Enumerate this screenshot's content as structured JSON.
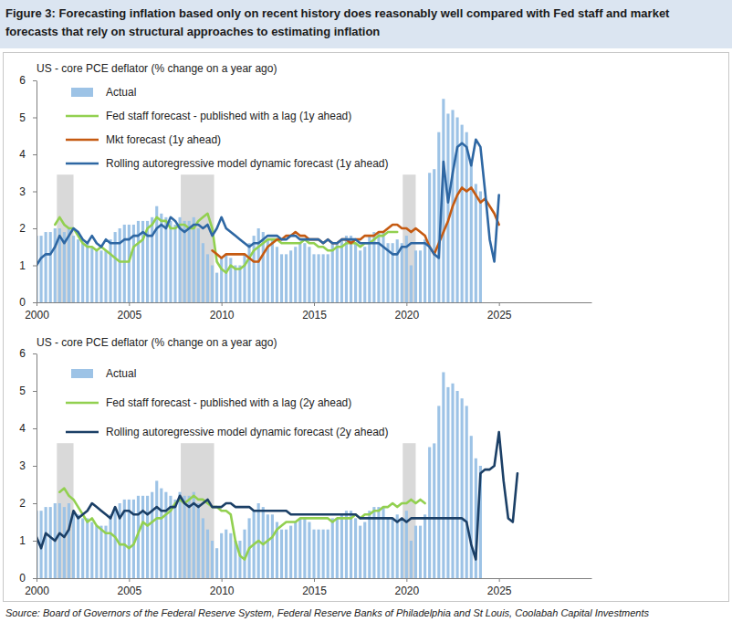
{
  "title": "Figure 3: Forecasting inflation based only on recent history does reasonably well compared with Fed staff and market forecasts that rely on structural approaches to estimating inflation",
  "source": "Source: Board of Governors of the Federal Reserve System, Federal Reserve Banks of Philadelphia and St Louis, Coolabah Capital Investments",
  "chart_data": [
    {
      "type": "line",
      "subtitle": "US - core PCE deflator (% change on a year ago)",
      "xlim": [
        2000,
        2030
      ],
      "xticks": [
        2000,
        2005,
        2010,
        2015,
        2020,
        2025
      ],
      "ylim": [
        0,
        6
      ],
      "yticks": [
        0,
        1,
        2,
        3,
        4,
        5,
        6
      ],
      "grid": false,
      "legend": "upper left",
      "recessions": [
        [
          2001.1,
          2002.0
        ],
        [
          2007.8,
          2009.6
        ],
        [
          2019.8,
          2020.5
        ]
      ],
      "x": [
        2000,
        2000.25,
        2000.5,
        2000.75,
        2001,
        2001.25,
        2001.5,
        2001.75,
        2002,
        2002.25,
        2002.5,
        2002.75,
        2003,
        2003.25,
        2003.5,
        2003.75,
        2004,
        2004.25,
        2004.5,
        2004.75,
        2005,
        2005.25,
        2005.5,
        2005.75,
        2006,
        2006.25,
        2006.5,
        2006.75,
        2007,
        2007.25,
        2007.5,
        2007.75,
        2008,
        2008.25,
        2008.5,
        2008.75,
        2009,
        2009.25,
        2009.5,
        2009.75,
        2010,
        2010.25,
        2010.5,
        2010.75,
        2011,
        2011.25,
        2011.5,
        2011.75,
        2012,
        2012.25,
        2012.5,
        2012.75,
        2013,
        2013.25,
        2013.5,
        2013.75,
        2014,
        2014.25,
        2014.5,
        2014.75,
        2015,
        2015.25,
        2015.5,
        2015.75,
        2016,
        2016.25,
        2016.5,
        2016.75,
        2017,
        2017.25,
        2017.5,
        2017.75,
        2018,
        2018.25,
        2018.5,
        2018.75,
        2019,
        2019.25,
        2019.5,
        2019.75,
        2020,
        2020.25,
        2020.5,
        2020.75,
        2021,
        2021.25,
        2021.5,
        2021.75,
        2022,
        2022.25,
        2022.5,
        2022.75,
        2023,
        2023.25,
        2023.5,
        2023.75,
        2024,
        2024.25,
        2024.5,
        2024.75,
        2025,
        2025.25,
        2025.5,
        2025.75,
        2026
      ],
      "series": [
        {
          "name": "Actual",
          "type": "bar",
          "color": "#9dc3e6",
          "values": [
            1.8,
            1.8,
            1.9,
            1.9,
            2.0,
            2.0,
            1.9,
            2.0,
            1.8,
            1.7,
            1.6,
            1.6,
            1.5,
            1.4,
            1.4,
            1.4,
            1.7,
            1.9,
            2.0,
            2.1,
            2.1,
            2.1,
            2.2,
            2.2,
            2.2,
            2.3,
            2.6,
            2.4,
            2.3,
            2.2,
            2.1,
            2.3,
            2.2,
            2.2,
            2.3,
            2.0,
            1.6,
            1.3,
            1.0,
            0.8,
            1.2,
            1.3,
            1.2,
            1.0,
            1.0,
            1.3,
            1.6,
            1.8,
            2.0,
            1.9,
            1.7,
            1.7,
            1.5,
            1.3,
            1.3,
            1.4,
            1.5,
            1.6,
            1.6,
            1.5,
            1.3,
            1.3,
            1.3,
            1.3,
            1.6,
            1.6,
            1.7,
            1.8,
            1.8,
            1.6,
            1.4,
            1.5,
            1.8,
            1.9,
            1.9,
            1.9,
            1.6,
            1.6,
            1.7,
            1.6,
            1.8,
            1.0,
            1.4,
            1.4,
            1.7,
            3.5,
            3.6,
            4.6,
            5.5,
            5.1,
            5.2,
            5.0,
            4.8,
            4.6,
            3.8,
            3.2,
            3.0,
            null,
            null,
            null,
            null,
            null,
            null,
            null,
            null
          ]
        },
        {
          "name": "Fed staff forecast - published with a lag (1y ahead)",
          "type": "line",
          "color": "#92d050",
          "values": [
            null,
            null,
            null,
            null,
            2.1,
            2.3,
            2.1,
            2.0,
            2.0,
            1.8,
            1.6,
            1.5,
            1.5,
            1.4,
            1.5,
            1.4,
            1.3,
            1.2,
            1.1,
            1.1,
            1.1,
            1.5,
            1.6,
            1.7,
            2.0,
            2.1,
            2.3,
            2.2,
            2.2,
            2.0,
            2.0,
            2.1,
            2.1,
            2.0,
            2.0,
            2.2,
            2.3,
            2.4,
            2.0,
            1.1,
            0.9,
            0.8,
            1.0,
            0.9,
            0.9,
            1.0,
            1.2,
            1.4,
            1.5,
            1.6,
            1.7,
            1.7,
            1.7,
            1.6,
            1.6,
            1.6,
            1.6,
            1.6,
            1.7,
            1.6,
            1.6,
            1.5,
            1.5,
            1.4,
            1.4,
            1.5,
            1.5,
            1.6,
            1.6,
            1.6,
            1.5,
            1.6,
            1.6,
            1.7,
            1.8,
            1.8,
            1.9,
            1.9,
            1.9,
            null,
            null,
            null,
            null,
            null,
            null,
            null,
            null,
            null,
            null,
            null,
            null,
            null,
            null,
            null,
            null,
            null,
            null,
            null,
            null,
            null,
            null,
            null,
            null,
            null,
            null
          ]
        },
        {
          "name": "Mkt forecast (1y ahead)",
          "type": "line",
          "color": "#c55a11",
          "values": [
            null,
            null,
            null,
            null,
            null,
            null,
            null,
            null,
            null,
            null,
            null,
            null,
            null,
            null,
            null,
            null,
            null,
            null,
            null,
            null,
            null,
            null,
            null,
            null,
            null,
            null,
            null,
            null,
            null,
            null,
            null,
            null,
            null,
            null,
            null,
            null,
            null,
            null,
            1.4,
            1.3,
            1.2,
            1.3,
            1.3,
            1.3,
            1.3,
            1.3,
            1.2,
            1.1,
            1.1,
            1.3,
            1.5,
            1.6,
            1.7,
            1.7,
            1.8,
            1.8,
            1.9,
            1.8,
            1.8,
            1.7,
            1.7,
            1.7,
            1.6,
            1.7,
            1.6,
            1.6,
            1.7,
            1.7,
            1.6,
            1.7,
            1.7,
            1.8,
            1.8,
            1.8,
            1.9,
            1.9,
            2.0,
            2.1,
            2.1,
            2.0,
            2.0,
            1.9,
            2.0,
            1.9,
            1.8,
            1.5,
            1.3,
            1.6,
            1.9,
            2.2,
            2.6,
            2.9,
            3.1,
            3.0,
            3.1,
            2.9,
            2.7,
            2.8,
            2.6,
            2.4,
            2.1,
            null,
            null,
            null,
            null
          ]
        },
        {
          "name": "Rolling autoregressive model dynamic forecast (1y ahead)",
          "type": "line",
          "color": "#2e67a3",
          "values": [
            1.0,
            1.2,
            1.3,
            1.3,
            1.5,
            1.8,
            1.6,
            1.8,
            2.0,
            1.9,
            1.7,
            1.6,
            1.8,
            1.6,
            1.5,
            1.7,
            1.6,
            1.6,
            1.6,
            1.7,
            1.7,
            1.8,
            1.8,
            1.9,
            1.8,
            1.8,
            2.0,
            2.1,
            2.0,
            2.3,
            2.2,
            2.0,
            1.9,
            2.0,
            2.1,
            2.1,
            2.0,
            2.1,
            1.8,
            2.0,
            2.3,
            2.0,
            1.9,
            1.8,
            1.7,
            1.6,
            1.5,
            1.6,
            1.6,
            1.7,
            1.8,
            1.8,
            1.8,
            1.7,
            1.7,
            1.8,
            1.8,
            1.7,
            1.7,
            1.7,
            1.7,
            1.7,
            1.6,
            1.7,
            1.6,
            1.6,
            1.7,
            1.7,
            1.7,
            1.7,
            1.6,
            1.6,
            1.6,
            1.6,
            1.6,
            1.5,
            1.4,
            1.3,
            1.3,
            1.5,
            1.5,
            1.6,
            1.6,
            1.6,
            1.6,
            1.5,
            1.3,
            1.2,
            3.8,
            2.7,
            3.5,
            4.2,
            4.3,
            4.2,
            3.7,
            4.4,
            4.2,
            3.0,
            1.7,
            1.1,
            2.9,
            null,
            null,
            null,
            null
          ]
        }
      ]
    },
    {
      "type": "line",
      "subtitle": "US - core PCE deflator (% change on a year ago)",
      "xlim": [
        2000,
        2030
      ],
      "xticks": [
        2000,
        2005,
        2010,
        2015,
        2020,
        2025
      ],
      "ylim": [
        0,
        6
      ],
      "yticks": [
        0,
        1,
        2,
        3,
        4,
        5,
        6
      ],
      "grid": false,
      "legend": "upper left",
      "recessions": [
        [
          2001.1,
          2002.0
        ],
        [
          2007.8,
          2009.6
        ],
        [
          2019.8,
          2020.5
        ]
      ],
      "x": [
        2000,
        2000.25,
        2000.5,
        2000.75,
        2001,
        2001.25,
        2001.5,
        2001.75,
        2002,
        2002.25,
        2002.5,
        2002.75,
        2003,
        2003.25,
        2003.5,
        2003.75,
        2004,
        2004.25,
        2004.5,
        2004.75,
        2005,
        2005.25,
        2005.5,
        2005.75,
        2006,
        2006.25,
        2006.5,
        2006.75,
        2007,
        2007.25,
        2007.5,
        2007.75,
        2008,
        2008.25,
        2008.5,
        2008.75,
        2009,
        2009.25,
        2009.5,
        2009.75,
        2010,
        2010.25,
        2010.5,
        2010.75,
        2011,
        2011.25,
        2011.5,
        2011.75,
        2012,
        2012.25,
        2012.5,
        2012.75,
        2013,
        2013.25,
        2013.5,
        2013.75,
        2014,
        2014.25,
        2014.5,
        2014.75,
        2015,
        2015.25,
        2015.5,
        2015.75,
        2016,
        2016.25,
        2016.5,
        2016.75,
        2017,
        2017.25,
        2017.5,
        2017.75,
        2018,
        2018.25,
        2018.5,
        2018.75,
        2019,
        2019.25,
        2019.5,
        2019.75,
        2020,
        2020.25,
        2020.5,
        2020.75,
        2021,
        2021.25,
        2021.5,
        2021.75,
        2022,
        2022.25,
        2022.5,
        2022.75,
        2023,
        2023.25,
        2023.5,
        2023.75,
        2024,
        2024.25,
        2024.5,
        2024.75,
        2025,
        2025.25,
        2025.5,
        2025.75,
        2026
      ],
      "series": [
        {
          "name": "Actual",
          "type": "bar",
          "color": "#9dc3e6",
          "values": [
            1.8,
            1.8,
            1.9,
            1.9,
            2.0,
            2.0,
            1.9,
            2.0,
            1.8,
            1.7,
            1.6,
            1.6,
            1.5,
            1.4,
            1.4,
            1.4,
            1.7,
            1.9,
            2.0,
            2.1,
            2.1,
            2.1,
            2.2,
            2.2,
            2.2,
            2.3,
            2.6,
            2.4,
            2.3,
            2.2,
            2.1,
            2.3,
            2.2,
            2.2,
            2.3,
            2.0,
            1.6,
            1.3,
            1.0,
            0.8,
            1.2,
            1.3,
            1.2,
            1.0,
            1.0,
            1.3,
            1.6,
            1.8,
            2.0,
            1.9,
            1.7,
            1.7,
            1.5,
            1.3,
            1.3,
            1.4,
            1.5,
            1.6,
            1.6,
            1.5,
            1.3,
            1.3,
            1.3,
            1.3,
            1.6,
            1.6,
            1.7,
            1.8,
            1.8,
            1.6,
            1.4,
            1.5,
            1.8,
            1.9,
            1.9,
            1.9,
            1.6,
            1.6,
            1.7,
            1.6,
            1.8,
            1.0,
            1.4,
            1.4,
            1.7,
            3.5,
            3.6,
            4.6,
            5.5,
            5.1,
            5.2,
            5.0,
            4.8,
            4.6,
            3.8,
            3.2,
            3.0,
            null,
            null,
            null,
            null,
            null,
            null,
            null,
            null
          ]
        },
        {
          "name": "Fed staff forecast - published with a lag (2y ahead)",
          "type": "line",
          "color": "#92d050",
          "values": [
            null,
            null,
            null,
            null,
            null,
            2.3,
            2.4,
            2.2,
            2.1,
            1.9,
            1.7,
            1.5,
            1.6,
            1.4,
            1.3,
            1.2,
            1.2,
            1.1,
            0.9,
            0.9,
            0.8,
            0.9,
            1.2,
            1.5,
            1.4,
            1.5,
            1.6,
            1.6,
            1.7,
            1.8,
            2.0,
            2.1,
            2.0,
            2.1,
            2.2,
            2.1,
            2.1,
            2.0,
            1.9,
            1.9,
            1.8,
            1.8,
            1.7,
            1.0,
            0.6,
            0.5,
            0.8,
            0.9,
            1.0,
            0.9,
            1.0,
            1.1,
            1.3,
            1.4,
            1.5,
            1.5,
            1.5,
            1.6,
            1.6,
            1.6,
            1.6,
            1.6,
            1.6,
            1.6,
            1.5,
            1.6,
            1.6,
            1.6,
            1.6,
            1.7,
            1.6,
            1.7,
            1.7,
            1.8,
            1.8,
            1.9,
            1.9,
            2.0,
            1.9,
            2.0,
            2.0,
            2.1,
            2.0,
            2.1,
            2.0,
            null,
            null,
            null,
            null,
            null,
            null,
            null,
            null,
            null,
            null,
            null,
            null,
            null,
            null,
            null,
            null,
            null,
            null,
            null,
            null
          ]
        },
        {
          "name": "Rolling autoregressive model dynamic forecast (2y ahead)",
          "type": "line",
          "color": "#1b3f66",
          "values": [
            1.1,
            0.8,
            1.2,
            1.1,
            1.0,
            1.2,
            1.1,
            1.3,
            1.8,
            1.6,
            1.7,
            1.8,
            2.0,
            1.9,
            1.8,
            1.7,
            1.6,
            1.9,
            1.6,
            1.8,
            1.8,
            1.7,
            1.7,
            1.8,
            1.7,
            1.8,
            1.9,
            1.8,
            1.8,
            1.9,
            1.9,
            2.2,
            2.0,
            1.9,
            2.0,
            1.9,
            2.0,
            2.1,
            1.9,
            1.9,
            1.9,
            2.0,
            2.0,
            1.9,
            1.9,
            1.9,
            1.9,
            1.8,
            1.8,
            1.8,
            1.8,
            1.8,
            1.8,
            1.8,
            1.8,
            1.7,
            1.7,
            1.7,
            1.7,
            1.7,
            1.7,
            1.7,
            1.7,
            1.7,
            1.7,
            1.7,
            1.7,
            1.7,
            1.7,
            1.7,
            1.6,
            1.6,
            1.6,
            1.6,
            1.6,
            1.6,
            1.6,
            1.6,
            1.5,
            1.6,
            1.5,
            1.6,
            1.6,
            1.6,
            1.6,
            1.6,
            1.6,
            1.6,
            1.6,
            1.6,
            1.6,
            1.6,
            1.6,
            1.5,
            0.9,
            0.5,
            2.8,
            2.9,
            2.9,
            3.0,
            3.9,
            2.6,
            1.6,
            1.5,
            2.8
          ]
        }
      ]
    }
  ]
}
